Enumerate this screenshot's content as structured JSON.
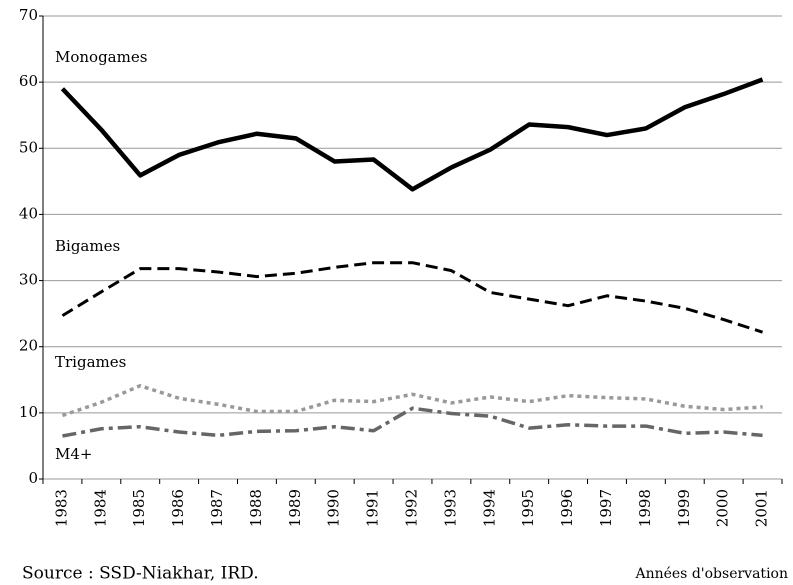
{
  "chart_data": {
    "type": "line",
    "categories": [
      "1983",
      "1984",
      "1985",
      "1986",
      "1987",
      "1988",
      "1989",
      "1990",
      "1991",
      "1992",
      "1993",
      "1994",
      "1995",
      "1996",
      "1997",
      "1998",
      "1999",
      "2000",
      "2001"
    ],
    "series": [
      {
        "name": "Monogames",
        "color": "#000000",
        "dash": "solid",
        "values": [
          59,
          52.8,
          45.9,
          49,
          50.9,
          52.2,
          51.5,
          48,
          48.3,
          43.8,
          47.1,
          49.8,
          53.6,
          53.2,
          52,
          53,
          56.2,
          58.2,
          60.4
        ]
      },
      {
        "name": "Bigames",
        "color": "#000000",
        "dash": "dashed",
        "values": [
          24.7,
          28.3,
          31.8,
          31.8,
          31.3,
          30.6,
          31.1,
          32,
          32.7,
          32.7,
          31.5,
          28.2,
          27.2,
          26.2,
          27.7,
          26.9,
          25.8,
          24.1,
          22.2
        ]
      },
      {
        "name": "Trigames",
        "color": "#999999",
        "dash": "dotted",
        "values": [
          9.6,
          11.6,
          14.1,
          12.2,
          11.3,
          10.2,
          10.2,
          11.9,
          11.7,
          12.8,
          11.5,
          12.4,
          11.7,
          12.6,
          12.3,
          12.1,
          11,
          10.5,
          10.9
        ]
      },
      {
        "name": "M4+",
        "color": "#666666",
        "dash": "dashdot",
        "values": [
          6.5,
          7.6,
          7.9,
          7.1,
          6.6,
          7.2,
          7.3,
          7.9,
          7.3,
          10.7,
          9.9,
          9.5,
          7.7,
          8.2,
          8,
          8,
          6.9,
          7.1,
          6.6
        ]
      }
    ],
    "ylim": [
      0,
      70
    ],
    "yticks": [
      0,
      10,
      20,
      30,
      40,
      50,
      60,
      70
    ],
    "grid": true,
    "x_label": "Années d'observation",
    "source": "Source : SSD-Niakhar, IRD."
  }
}
